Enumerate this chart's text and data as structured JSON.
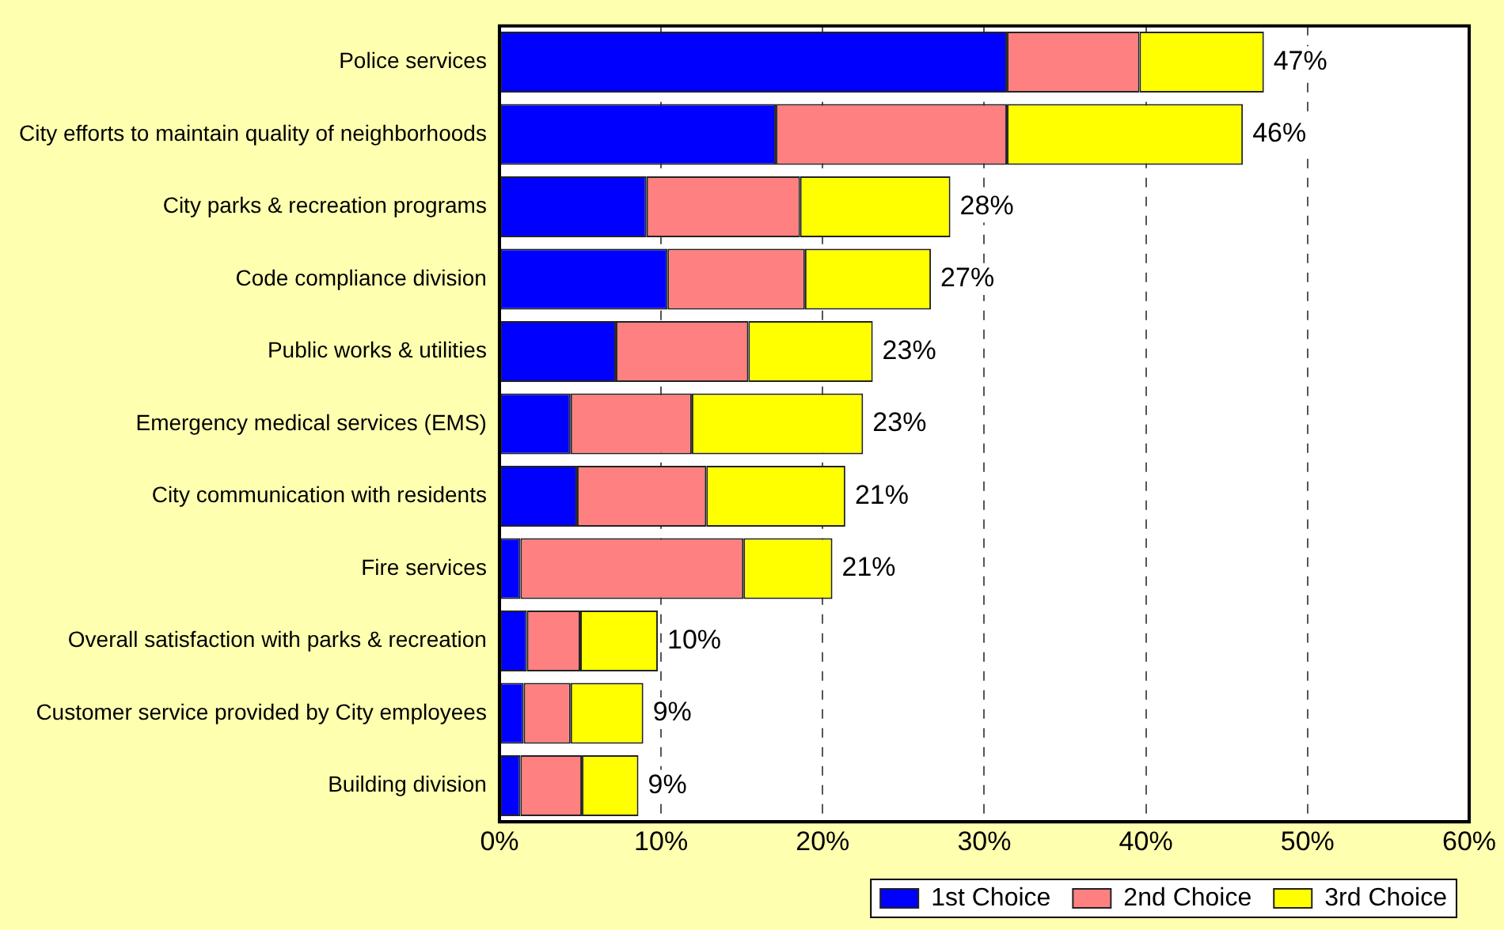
{
  "chart_data": {
    "type": "bar",
    "orientation": "horizontal",
    "stacked": true,
    "categories": [
      "Police services",
      "City efforts to maintain quality of neighborhoods",
      "City parks & recreation programs",
      "Code compliance division",
      "Public works & utilities",
      "Emergency medical services (EMS)",
      "City communication with residents",
      "Fire services",
      "Overall satisfaction with parks & recreation",
      "Customer service provided by City employees",
      "Building division"
    ],
    "series": [
      {
        "name": "1st Choice",
        "color": "#0000ff",
        "values": [
          31.4,
          17.1,
          9.1,
          10.4,
          7.2,
          4.4,
          4.8,
          1.3,
          1.7,
          1.5,
          1.3
        ]
      },
      {
        "name": "2nd Choice",
        "color": "#ff8080",
        "values": [
          8.2,
          14.3,
          9.5,
          8.5,
          8.2,
          7.5,
          8.0,
          13.8,
          3.3,
          2.9,
          3.8
        ]
      },
      {
        "name": "3rd Choice",
        "color": "#ffff00",
        "values": [
          7.7,
          14.6,
          9.3,
          7.8,
          7.7,
          10.6,
          8.6,
          5.5,
          4.8,
          4.5,
          3.5
        ]
      }
    ],
    "totals": [
      "47%",
      "46%",
      "28%",
      "27%",
      "23%",
      "23%",
      "21%",
      "21%",
      "10%",
      "9%",
      "9%"
    ],
    "xlim": [
      0,
      60
    ],
    "xticks": [
      {
        "value": 0,
        "label": "0%"
      },
      {
        "value": 10,
        "label": "10%"
      },
      {
        "value": 20,
        "label": "20%"
      },
      {
        "value": 30,
        "label": "30%"
      },
      {
        "value": 40,
        "label": "40%"
      },
      {
        "value": 50,
        "label": "50%"
      },
      {
        "value": 60,
        "label": "60%"
      }
    ],
    "grid": "x",
    "legend": "bottom right"
  }
}
